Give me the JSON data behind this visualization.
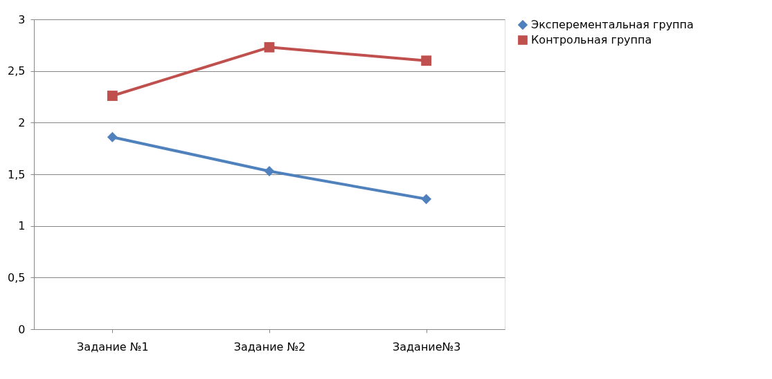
{
  "chart_data": {
    "type": "line",
    "categories": [
      "Задание №1",
      "Задание №2",
      "Задание№3"
    ],
    "series": [
      {
        "name": "Эксперементальная группа",
        "color": "#4f81bd",
        "marker": "diamond",
        "values": [
          1.86,
          1.53,
          1.26
        ]
      },
      {
        "name": "Контрольная группа",
        "color": "#c0504d",
        "marker": "square",
        "values": [
          2.26,
          2.73,
          2.6
        ]
      }
    ],
    "ylim": [
      0,
      3
    ],
    "yticks": [
      0,
      {
        "value": 0.5,
        "label": "0,5"
      },
      1,
      {
        "value": 1.5,
        "label": "1,5"
      },
      2,
      {
        "value": 2.5,
        "label": "2,5"
      },
      3
    ],
    "grid": "y",
    "legend": "right",
    "line_style": "solid"
  }
}
